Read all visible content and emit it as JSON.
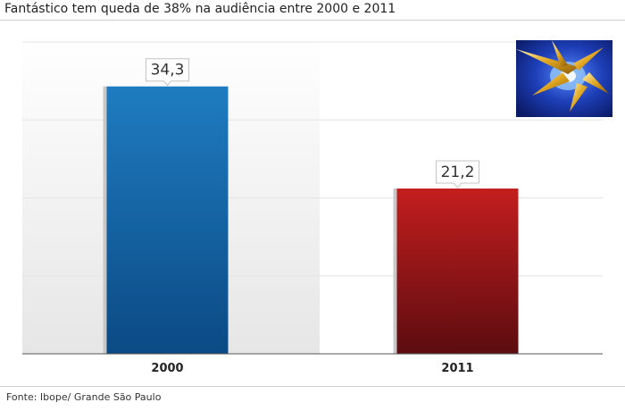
{
  "header": {
    "title": "Fantástico tem queda de 38% na audiência entre 2000 e 2011"
  },
  "footer": {
    "source": "Fonte: Ibope/ Grande São Paulo"
  },
  "logo": {
    "icon": "fantastico-logo-icon"
  },
  "chart_data": {
    "type": "bar",
    "title": "Fantástico tem queda de 38% na audiência entre 2000 e 2011",
    "categories": [
      "2000",
      "2011"
    ],
    "values": [
      34.3,
      21.2
    ],
    "value_labels": [
      "34,3",
      "21,2"
    ],
    "xlabel": "",
    "ylabel": "",
    "ylim": [
      0,
      40
    ],
    "grid": true,
    "legend": "none",
    "colors": [
      "#1a73b8",
      "#b81a1a"
    ]
  }
}
